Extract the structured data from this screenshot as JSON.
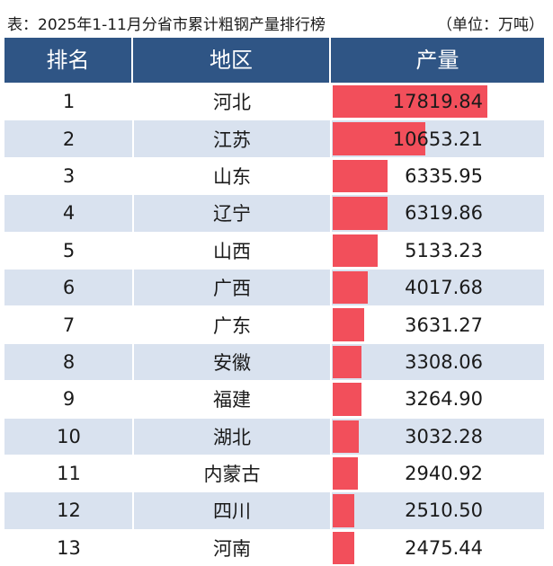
{
  "title": "表：2025年1-11月分省市累计粗钢产量排行榜",
  "unit": "（单位：万吨）",
  "headers": [
    "排名",
    "地区",
    "产量"
  ],
  "colors": {
    "header_bg": "#2f5585",
    "bar": "#f24f5b",
    "stripe": "#d9e2ef"
  },
  "chart_data": {
    "type": "table",
    "title": "表：2025年1-11月分省市累计粗钢产量排行榜",
    "unit": "万吨",
    "columns": [
      "排名",
      "地区",
      "产量"
    ],
    "rows": [
      {
        "rank": "1",
        "region": "河北",
        "value": 17819.84,
        "label": "17819.84"
      },
      {
        "rank": "2",
        "region": "江苏",
        "value": 10653.21,
        "label": "10653.21"
      },
      {
        "rank": "3",
        "region": "山东",
        "value": 6335.95,
        "label": "6335.95"
      },
      {
        "rank": "4",
        "region": "辽宁",
        "value": 6319.86,
        "label": "6319.86"
      },
      {
        "rank": "5",
        "region": "山西",
        "value": 5133.23,
        "label": "5133.23"
      },
      {
        "rank": "6",
        "region": "广西",
        "value": 4017.68,
        "label": "4017.68"
      },
      {
        "rank": "7",
        "region": "广东",
        "value": 3631.27,
        "label": "3631.27"
      },
      {
        "rank": "8",
        "region": "安徽",
        "value": 3308.06,
        "label": "3308.06"
      },
      {
        "rank": "9",
        "region": "福建",
        "value": 3264.9,
        "label": "3264.90"
      },
      {
        "rank": "10",
        "region": "湖北",
        "value": 3032.28,
        "label": "3032.28"
      },
      {
        "rank": "11",
        "region": "内蒙古",
        "value": 2940.92,
        "label": "2940.92"
      },
      {
        "rank": "12",
        "region": "四川",
        "value": 2510.5,
        "label": "2510.50"
      },
      {
        "rank": "13",
        "region": "河南",
        "value": 2475.44,
        "label": "2475.44"
      }
    ]
  }
}
